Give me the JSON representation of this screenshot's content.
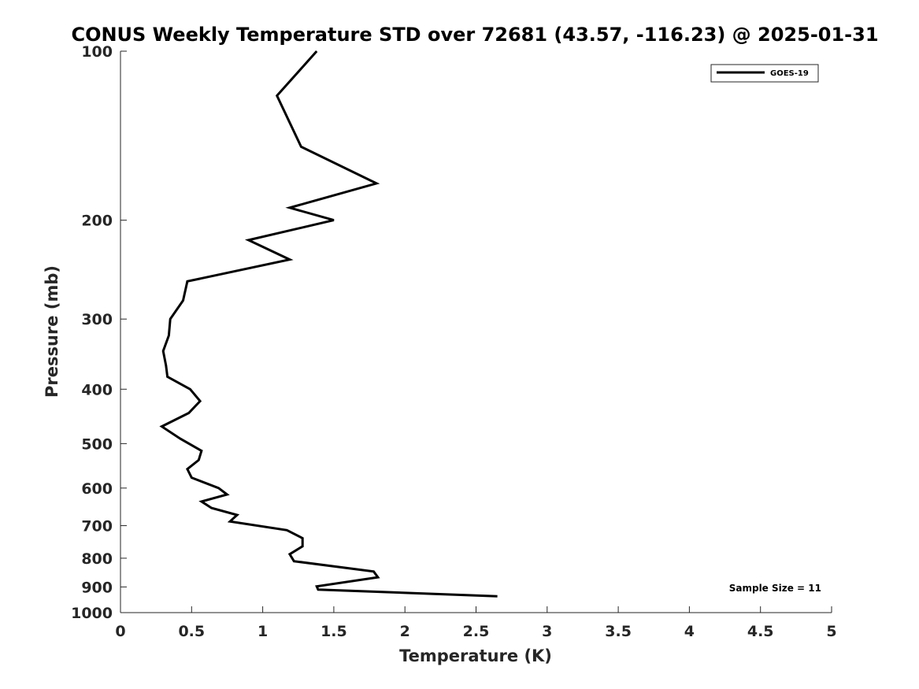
{
  "chart_data": {
    "type": "line",
    "title": "CONUS Weekly Temperature STD over 72681 (43.57, -116.23) @ 2025-01-31",
    "xlabel": "Temperature (K)",
    "ylabel": "Pressure (mb)",
    "xlim": [
      0,
      5
    ],
    "ylim": [
      100,
      1000
    ],
    "yscale": "log",
    "y_reversed": true,
    "x_ticks": [
      0,
      0.5,
      1,
      1.5,
      2,
      2.5,
      3,
      3.5,
      4,
      4.5,
      5
    ],
    "x_tick_labels": [
      "0",
      "0.5",
      "1",
      "1.5",
      "2",
      "2.5",
      "3",
      "3.5",
      "4",
      "4.5",
      "5"
    ],
    "y_ticks": [
      100,
      200,
      300,
      400,
      500,
      600,
      700,
      800,
      900,
      1000
    ],
    "y_tick_labels": [
      "100",
      "200",
      "300",
      "400",
      "500",
      "600",
      "700",
      "800",
      "900",
      "1000"
    ],
    "legend": {
      "position": "top-right",
      "entries": [
        "GOES-19"
      ]
    },
    "annotation": "Sample Size = 11",
    "series": [
      {
        "name": "GOES-19",
        "color": "#000000",
        "points": [
          {
            "x": 1.38,
            "p": 100
          },
          {
            "x": 1.1,
            "p": 120
          },
          {
            "x": 1.27,
            "p": 148
          },
          {
            "x": 1.8,
            "p": 172
          },
          {
            "x": 1.19,
            "p": 190
          },
          {
            "x": 1.5,
            "p": 200
          },
          {
            "x": 0.9,
            "p": 217
          },
          {
            "x": 1.19,
            "p": 235
          },
          {
            "x": 0.47,
            "p": 257
          },
          {
            "x": 0.44,
            "p": 278
          },
          {
            "x": 0.35,
            "p": 300
          },
          {
            "x": 0.34,
            "p": 321
          },
          {
            "x": 0.3,
            "p": 342
          },
          {
            "x": 0.32,
            "p": 363
          },
          {
            "x": 0.33,
            "p": 380
          },
          {
            "x": 0.49,
            "p": 400
          },
          {
            "x": 0.56,
            "p": 420
          },
          {
            "x": 0.48,
            "p": 441
          },
          {
            "x": 0.29,
            "p": 466
          },
          {
            "x": 0.42,
            "p": 490
          },
          {
            "x": 0.57,
            "p": 515
          },
          {
            "x": 0.55,
            "p": 535
          },
          {
            "x": 0.47,
            "p": 555
          },
          {
            "x": 0.5,
            "p": 575
          },
          {
            "x": 0.69,
            "p": 600
          },
          {
            "x": 0.75,
            "p": 616
          },
          {
            "x": 0.57,
            "p": 634
          },
          {
            "x": 0.64,
            "p": 651
          },
          {
            "x": 0.82,
            "p": 670
          },
          {
            "x": 0.77,
            "p": 688
          },
          {
            "x": 1.17,
            "p": 713
          },
          {
            "x": 1.28,
            "p": 737
          },
          {
            "x": 1.28,
            "p": 762
          },
          {
            "x": 1.19,
            "p": 787
          },
          {
            "x": 1.22,
            "p": 810
          },
          {
            "x": 1.78,
            "p": 845
          },
          {
            "x": 1.81,
            "p": 865
          },
          {
            "x": 1.38,
            "p": 898
          },
          {
            "x": 1.39,
            "p": 910
          },
          {
            "x": 2.65,
            "p": 935
          }
        ]
      }
    ]
  }
}
